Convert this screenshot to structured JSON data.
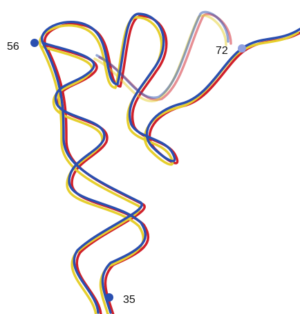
{
  "labels": [
    "56",
    "72",
    "35"
  ]
}
